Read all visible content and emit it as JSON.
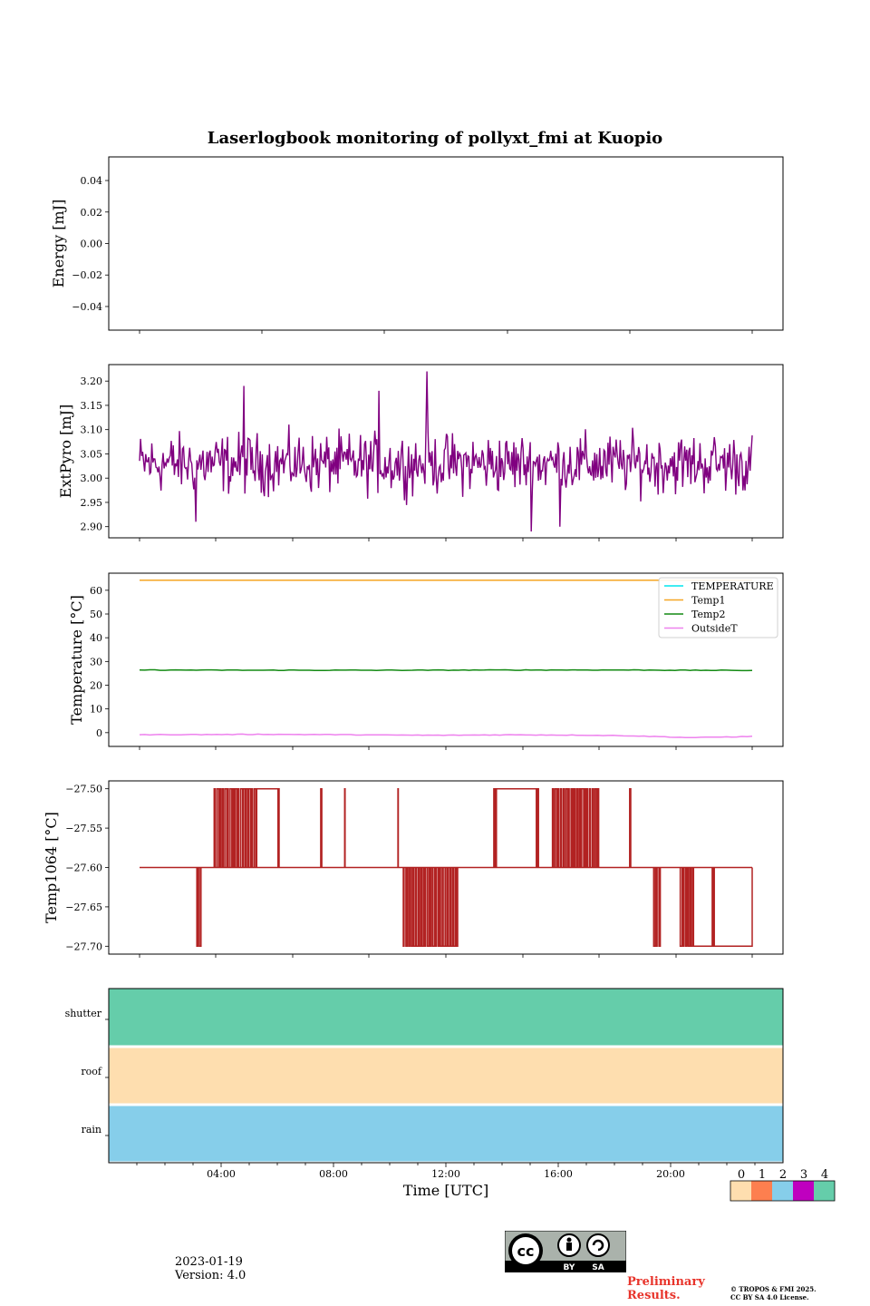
{
  "title": "Laserlogbook monitoring of pollyxt_fmi at Kuopio",
  "footer": {
    "date": "2023-01-19",
    "version": "Version: 4.0",
    "preliminary_line1": "Preliminary",
    "preliminary_line2": "Results.",
    "copyright_line1": "© TROPOS & FMI 2025.",
    "copyright_line2": "CC BY SA 4.0 License.",
    "cc_badge_by": "BY",
    "cc_badge_sa": "SA"
  },
  "colorbar": {
    "labels": [
      "0",
      "1",
      "2",
      "3",
      "4"
    ],
    "colors": [
      "#fedeaf",
      "#fd7f4f",
      "#86ceea",
      "#bf00bf",
      "#65cdaa"
    ]
  },
  "chart_data": [
    {
      "type": "line",
      "panel": "energy",
      "ylabel": "Energy [mJ]",
      "ylim": [
        -0.055,
        0.055
      ],
      "yticks": [
        0.04,
        0.02,
        0.0,
        -0.02,
        -0.04
      ],
      "ytick_labels": [
        "0.04",
        "0.02",
        "0.00",
        "−0.02",
        "−0.04"
      ],
      "series": []
    },
    {
      "type": "line",
      "panel": "extpyro",
      "ylabel": "ExtPyro [mJ]",
      "ylim": [
        2.877,
        3.234
      ],
      "yticks": [
        3.2,
        3.15,
        3.1,
        3.05,
        3.0,
        2.95,
        2.9
      ],
      "ytick_labels": [
        "3.20",
        "3.15",
        "3.10",
        "3.05",
        "3.00",
        "2.95",
        "2.90"
      ],
      "x_range_hours": [
        0.5,
        23.5
      ],
      "series": [
        {
          "name": "ExtPyro",
          "color": "#800080",
          "mean": 3.03,
          "noise_halfwidth": 0.09,
          "n_points": 600,
          "spikes": [
            {
              "hour": 11.3,
              "value": 3.22
            },
            {
              "hour": 4.4,
              "value": 3.19
            },
            {
              "hour": 9.5,
              "value": 3.18
            },
            {
              "hour": 15.2,
              "value": 2.89
            },
            {
              "hour": 16.3,
              "value": 2.9
            },
            {
              "hour": 2.6,
              "value": 2.91
            }
          ]
        }
      ]
    },
    {
      "type": "line",
      "panel": "temperature",
      "ylabel": "Temperature [°C]",
      "ylim": [
        -5.8,
        67.2
      ],
      "yticks": [
        60,
        50,
        40,
        30,
        20,
        10,
        0
      ],
      "ytick_labels": [
        "60",
        "50",
        "40",
        "30",
        "20",
        "10",
        "0"
      ],
      "x_range_hours": [
        0.5,
        23.5
      ],
      "legend_location": "top-right",
      "series": [
        {
          "name": "TEMPERATURE",
          "color": "#00e5ee",
          "values": []
        },
        {
          "name": "Temp1",
          "color": "#f5a623",
          "values": [
            64.2,
            64.2
          ]
        },
        {
          "name": "Temp2",
          "color": "#138a13",
          "values": [
            26.4,
            26.3,
            26.3,
            26.4,
            26.4,
            26.2
          ]
        },
        {
          "name": "OutsideT",
          "color": "#ee82ee",
          "values": [
            -0.9,
            -0.8,
            -0.7,
            -0.8,
            -1.0,
            -1.1,
            -0.9,
            -1.0,
            -1.3,
            -2.1,
            -1.6
          ]
        }
      ]
    },
    {
      "type": "line",
      "panel": "temp1064",
      "ylabel": "Temp1064 [°C]",
      "ylim": [
        -27.71,
        -27.49
      ],
      "yticks": [
        -27.5,
        -27.55,
        -27.6,
        -27.65,
        -27.7
      ],
      "ytick_labels": [
        "−27.50",
        "−27.55",
        "−27.60",
        "−27.65",
        "−27.70"
      ],
      "x_range_hours": [
        0.5,
        23.5
      ],
      "series": [
        {
          "name": "Temp1064",
          "color": "#b22222",
          "base": -27.6,
          "steady": [
            {
              "from": 4.9,
              "to": 5.7,
              "value": -27.5
            },
            {
              "from": 13.9,
              "to": 15.4,
              "value": -27.5
            },
            {
              "from": 21.3,
              "to": 23.5,
              "value": -27.7
            }
          ],
          "toggle_bursts": [
            {
              "from": 3.3,
              "to": 4.9,
              "value": -27.5
            },
            {
              "from": 5.7,
              "to": 5.75,
              "value": -27.5
            },
            {
              "from": 7.3,
              "to": 7.35,
              "value": -27.5
            },
            {
              "from": 8.2,
              "to": 8.22,
              "value": -27.5
            },
            {
              "from": 10.2,
              "to": 10.22,
              "value": -27.5
            },
            {
              "from": 13.8,
              "to": 13.9,
              "value": -27.5
            },
            {
              "from": 15.4,
              "to": 15.5,
              "value": -27.5
            },
            {
              "from": 16.0,
              "to": 17.8,
              "value": -27.5
            },
            {
              "from": 18.9,
              "to": 18.95,
              "value": -27.5
            },
            {
              "from": 2.65,
              "to": 2.85,
              "value": -27.7
            },
            {
              "from": 10.4,
              "to": 12.5,
              "value": -27.7
            },
            {
              "from": 19.8,
              "to": 20.1,
              "value": -27.7
            },
            {
              "from": 20.8,
              "to": 21.3,
              "value": -27.7
            },
            {
              "from": 22.0,
              "to": 22.1,
              "value": -27.7
            }
          ]
        }
      ]
    },
    {
      "type": "heatmap",
      "panel": "flags",
      "xlabel": "Time [UTC]",
      "x_range_hours": [
        0,
        24
      ],
      "xtick_hours": [
        4,
        8,
        12,
        16,
        20
      ],
      "xtick_labels": [
        "04:00",
        "08:00",
        "12:00",
        "16:00",
        "20:00"
      ],
      "rows": [
        {
          "label": "shutter",
          "value": 4
        },
        {
          "label": "roof",
          "value": 0
        },
        {
          "label": "rain",
          "value": 2
        }
      ]
    }
  ]
}
